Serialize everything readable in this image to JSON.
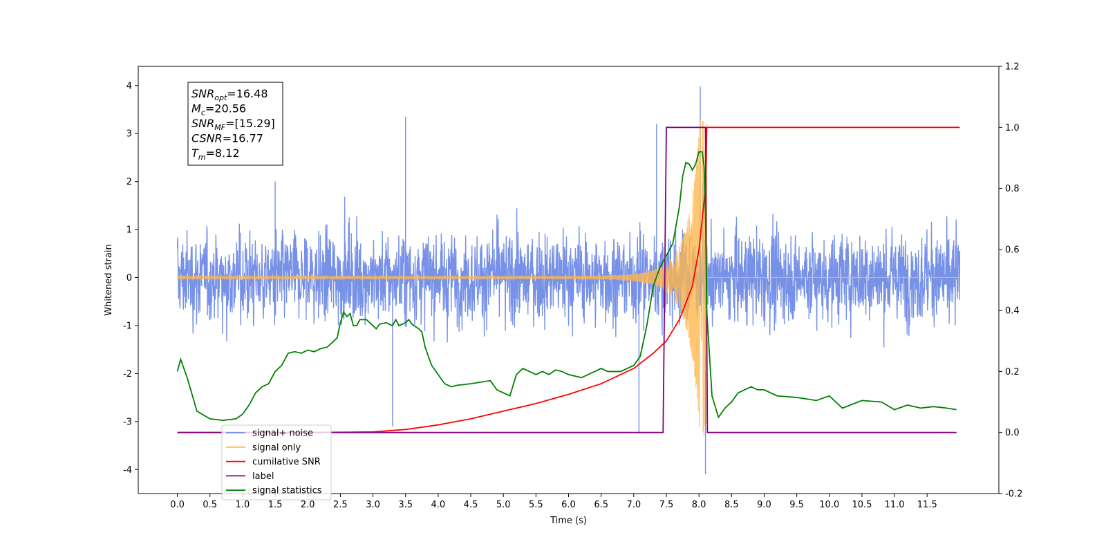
{
  "chart_data": {
    "type": "line",
    "xlabel": "Time (s)",
    "ylabel": "Whitened strain",
    "xlim": [
      -0.6,
      12.6
    ],
    "ylim": [
      -4.5,
      4.4
    ],
    "y2lim": [
      -0.2,
      1.2
    ],
    "grid": false,
    "legend_position": "lower-left",
    "x_ticks": [
      "0.0",
      "0.5",
      "1.0",
      "1.5",
      "2.0",
      "2.5",
      "3.0",
      "3.5",
      "4.0",
      "4.5",
      "5.0",
      "5.5",
      "6.0",
      "6.5",
      "7.0",
      "7.5",
      "8.0",
      "8.5",
      "9.0",
      "9.5",
      "10.0",
      "10.5",
      "11.0",
      "11.5"
    ],
    "y_ticks": [
      "-4",
      "-3",
      "-2",
      "-1",
      "0",
      "1",
      "2",
      "3",
      "4"
    ],
    "y2_ticks": [
      "-0.2",
      "0.0",
      "0.2",
      "0.4",
      "0.6",
      "0.8",
      "1.0",
      "1.2"
    ],
    "colors": {
      "noise": "#6f8be6",
      "signal": "#ffb74d",
      "csnr": "#ff0000",
      "label": "#800080",
      "stats": "#008000"
    },
    "annotation": {
      "lines": [
        {
          "base": "SNR",
          "sub": "opt",
          "value": "=16.48"
        },
        {
          "base": "M",
          "sub": "c",
          "value": "=20.56"
        },
        {
          "base": "SNR",
          "sub": "MF",
          "value": "=[15.29]"
        },
        {
          "base": "CSNR",
          "sub": "",
          "value": "=16.77"
        },
        {
          "base": "T",
          "sub": "m",
          "value": "=8.12"
        }
      ]
    },
    "legend": [
      "signal+ noise",
      "signal only",
      "cumilative SNR",
      "label",
      "signal statistics"
    ],
    "noise_series": {
      "description_axis": "left",
      "x_start": 0.0,
      "x_end": 12.0,
      "typical_amplitude": 1.8,
      "notable_peaks": [
        [
          1.5,
          2.0
        ],
        [
          3.5,
          3.35
        ],
        [
          7.35,
          3.2
        ],
        [
          8.02,
          3.98
        ],
        [
          8.1,
          -4.1
        ],
        [
          7.08,
          -3.25
        ],
        [
          3.3,
          -3.1
        ]
      ]
    },
    "signal_series": {
      "axis": "left",
      "merger_time": 8.12,
      "peak_amplitude": 3.3,
      "min_amplitude": -3.4
    },
    "cumulative_snr": {
      "axis": "right",
      "x": [
        0.0,
        2.0,
        3.0,
        3.5,
        4.0,
        4.5,
        5.0,
        5.5,
        6.0,
        6.5,
        7.0,
        7.3,
        7.5,
        7.7,
        7.9,
        8.0,
        8.05,
        8.1,
        8.12,
        12.0
      ],
      "y": [
        0.0,
        0.0,
        0.002,
        0.01,
        0.025,
        0.045,
        0.07,
        0.095,
        0.125,
        0.16,
        0.21,
        0.26,
        0.3,
        0.37,
        0.48,
        0.6,
        0.7,
        0.8,
        1.0,
        1.0
      ]
    },
    "label_series": {
      "axis": "right",
      "x": [
        0.0,
        7.45,
        7.5,
        8.1,
        8.13,
        11.95
      ],
      "y": [
        0.0,
        0.0,
        1.0,
        1.0,
        0.0,
        0.0
      ]
    },
    "statistics_series": {
      "axis": "right",
      "x": [
        0.0,
        0.05,
        0.15,
        0.3,
        0.5,
        0.7,
        0.9,
        1.0,
        1.1,
        1.2,
        1.3,
        1.4,
        1.5,
        1.6,
        1.7,
        1.8,
        1.9,
        2.0,
        2.1,
        2.2,
        2.3,
        2.4,
        2.45,
        2.5,
        2.55,
        2.6,
        2.65,
        2.7,
        2.75,
        2.8,
        2.9,
        3.0,
        3.05,
        3.1,
        3.2,
        3.3,
        3.35,
        3.4,
        3.5,
        3.55,
        3.6,
        3.7,
        3.75,
        3.8,
        3.9,
        4.0,
        4.1,
        4.2,
        4.3,
        4.5,
        4.8,
        4.9,
        5.0,
        5.1,
        5.2,
        5.3,
        5.4,
        5.5,
        5.6,
        5.7,
        5.8,
        5.9,
        6.0,
        6.2,
        6.4,
        6.5,
        6.6,
        6.8,
        7.0,
        7.1,
        7.2,
        7.3,
        7.4,
        7.5,
        7.6,
        7.7,
        7.75,
        7.8,
        7.85,
        7.9,
        7.95,
        8.0,
        8.05,
        8.08,
        8.1,
        8.12,
        8.2,
        8.3,
        8.4,
        8.5,
        8.6,
        8.7,
        8.8,
        8.9,
        9.0,
        9.2,
        9.5,
        9.8,
        10.0,
        10.2,
        10.5,
        10.8,
        11.0,
        11.2,
        11.4,
        11.6,
        11.8,
        11.95
      ],
      "y": [
        0.2,
        0.24,
        0.18,
        0.07,
        0.045,
        0.04,
        0.045,
        0.06,
        0.09,
        0.13,
        0.15,
        0.16,
        0.2,
        0.22,
        0.26,
        0.265,
        0.26,
        0.27,
        0.265,
        0.275,
        0.28,
        0.3,
        0.31,
        0.36,
        0.395,
        0.38,
        0.39,
        0.35,
        0.35,
        0.37,
        0.37,
        0.35,
        0.34,
        0.355,
        0.36,
        0.35,
        0.37,
        0.35,
        0.36,
        0.37,
        0.355,
        0.34,
        0.33,
        0.28,
        0.22,
        0.19,
        0.16,
        0.15,
        0.155,
        0.16,
        0.17,
        0.14,
        0.13,
        0.12,
        0.19,
        0.21,
        0.2,
        0.19,
        0.2,
        0.19,
        0.205,
        0.2,
        0.19,
        0.18,
        0.2,
        0.21,
        0.2,
        0.2,
        0.22,
        0.25,
        0.35,
        0.48,
        0.54,
        0.58,
        0.62,
        0.74,
        0.84,
        0.885,
        0.88,
        0.86,
        0.88,
        0.92,
        0.92,
        0.87,
        0.72,
        0.4,
        0.12,
        0.05,
        0.08,
        0.1,
        0.13,
        0.14,
        0.15,
        0.14,
        0.14,
        0.12,
        0.115,
        0.105,
        0.12,
        0.08,
        0.105,
        0.1,
        0.075,
        0.09,
        0.08,
        0.085,
        0.08,
        0.075
      ]
    }
  }
}
